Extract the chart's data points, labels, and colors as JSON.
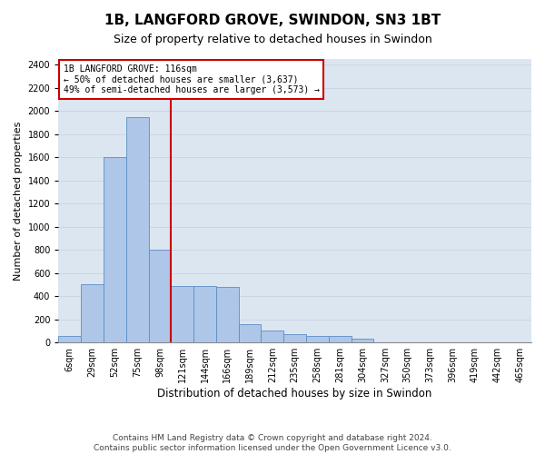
{
  "title": "1B, LANGFORD GROVE, SWINDON, SN3 1BT",
  "subtitle": "Size of property relative to detached houses in Swindon",
  "xlabel": "Distribution of detached houses by size in Swindon",
  "ylabel": "Number of detached properties",
  "categories": [
    "6sqm",
    "29sqm",
    "52sqm",
    "75sqm",
    "98sqm",
    "121sqm",
    "144sqm",
    "166sqm",
    "189sqm",
    "212sqm",
    "235sqm",
    "258sqm",
    "281sqm",
    "304sqm",
    "327sqm",
    "350sqm",
    "373sqm",
    "396sqm",
    "419sqm",
    "442sqm",
    "465sqm"
  ],
  "values": [
    55,
    500,
    1600,
    1950,
    800,
    490,
    490,
    480,
    160,
    100,
    75,
    55,
    55,
    30,
    0,
    0,
    0,
    0,
    0,
    0,
    0
  ],
  "bar_color": "#aec6e8",
  "bar_edge_color": "#5b8ec4",
  "property_line_color": "#cc0000",
  "annotation_text": "1B LANGFORD GROVE: 116sqm\n← 50% of detached houses are smaller (3,637)\n49% of semi-detached houses are larger (3,573) →",
  "annotation_box_color": "#ffffff",
  "annotation_box_edge": "#cc0000",
  "ylim": [
    0,
    2450
  ],
  "yticks": [
    0,
    200,
    400,
    600,
    800,
    1000,
    1200,
    1400,
    1600,
    1800,
    2000,
    2200,
    2400
  ],
  "grid_color": "#c8d4e3",
  "background_color": "#dce6f1",
  "footer": "Contains HM Land Registry data © Crown copyright and database right 2024.\nContains public sector information licensed under the Open Government Licence v3.0.",
  "title_fontsize": 11,
  "subtitle_fontsize": 9,
  "xlabel_fontsize": 8.5,
  "ylabel_fontsize": 8,
  "tick_fontsize": 7,
  "footer_fontsize": 6.5,
  "fig_width": 6.0,
  "fig_height": 5.0,
  "dpi": 100
}
